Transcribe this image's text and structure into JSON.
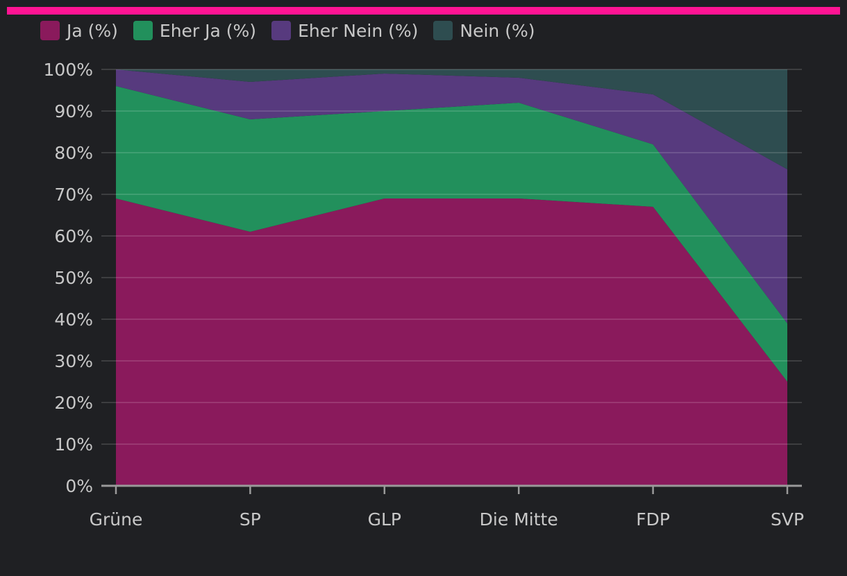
{
  "colors": {
    "background": "#1f2023",
    "accent": "#ff1493",
    "grid": "#4a4a4e",
    "axis": "#9a9a9a",
    "text": "#c8c8c8"
  },
  "chart_data": {
    "type": "area",
    "stacked": true,
    "categories": [
      "Grüne",
      "SP",
      "GLP",
      "Die Mitte",
      "FDP",
      "SVP"
    ],
    "series": [
      {
        "name": "Ja (%)",
        "color": "#8a1a5c",
        "values": [
          69,
          61,
          69,
          69,
          67,
          25
        ]
      },
      {
        "name": "Eher Ja (%)",
        "color": "#22905c",
        "values": [
          27,
          27,
          21,
          23,
          15,
          14
        ]
      },
      {
        "name": "Eher Nein (%)",
        "color": "#573a7e",
        "values": [
          4,
          9,
          9,
          6,
          12,
          37
        ]
      },
      {
        "name": "Nein (%)",
        "color": "#2e4d50",
        "values": [
          0,
          3,
          1,
          2,
          6,
          24
        ]
      }
    ],
    "ylim": [
      0,
      100
    ],
    "yticks": [
      0,
      10,
      20,
      30,
      40,
      50,
      60,
      70,
      80,
      90,
      100
    ],
    "ytick_labels": [
      "0%",
      "10%",
      "20%",
      "30%",
      "40%",
      "50%",
      "60%",
      "70%",
      "80%",
      "90%",
      "100%"
    ],
    "grid": true,
    "legend": "top-left",
    "title": "",
    "xlabel": "",
    "ylabel": ""
  }
}
